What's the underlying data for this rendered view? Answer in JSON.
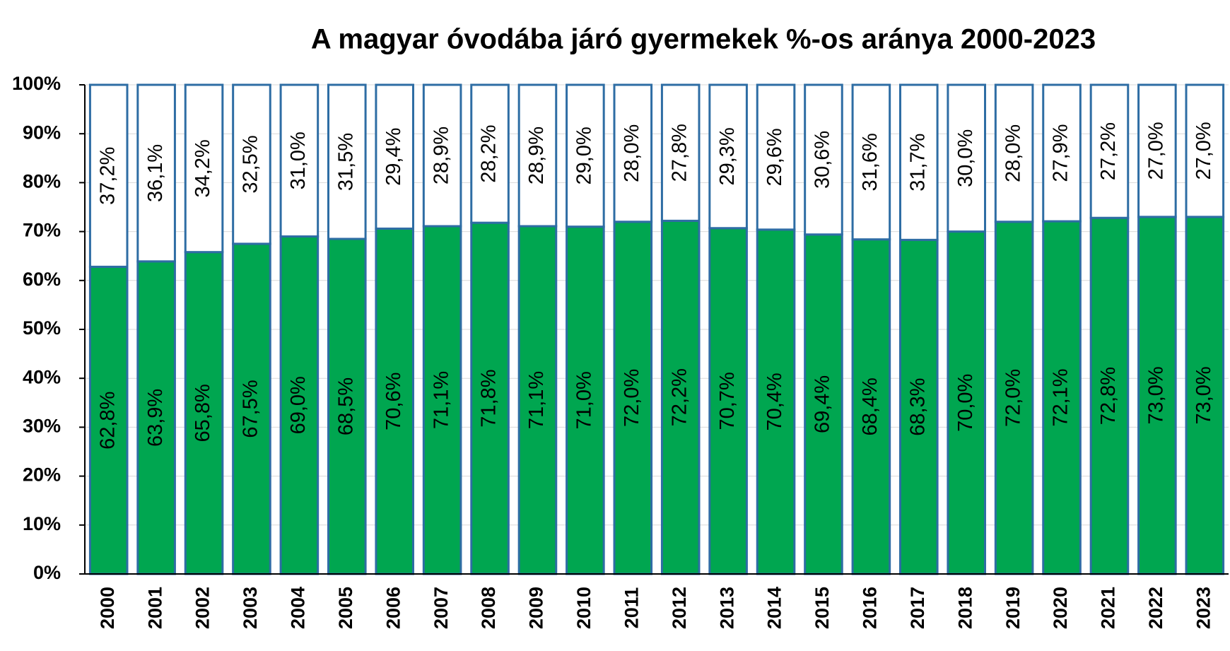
{
  "chart_data": {
    "type": "stacked_bar",
    "title": "A magyar óvodába járó gyermekek %-os  aránya  2000-2023",
    "categories": [
      "2000",
      "2001",
      "2002",
      "2003",
      "2004",
      "2005",
      "2006",
      "2007",
      "2008",
      "2009",
      "2010",
      "2011",
      "2012",
      "2013",
      "2014",
      "2015",
      "2016",
      "2017",
      "2018",
      "2019",
      "2020",
      "2021",
      "2022",
      "2023"
    ],
    "series": [
      {
        "color": "#00a650",
        "values": [
          62.8,
          63.9,
          65.8,
          67.5,
          69.0,
          68.5,
          70.6,
          71.1,
          71.8,
          71.1,
          71.0,
          72.0,
          72.2,
          70.7,
          70.4,
          69.4,
          68.4,
          68.3,
          70.0,
          72.0,
          72.1,
          72.8,
          73.0,
          73.0
        ],
        "value_labels": [
          "62,8%",
          "63,9%",
          "65,8%",
          "67,5%",
          "69,0%",
          "68,5%",
          "70,6%",
          "71,1%",
          "71,8%",
          "71,1%",
          "71,0%",
          "72,0%",
          "72,2%",
          "70,7%",
          "70,4%",
          "69,4%",
          "68,4%",
          "68,3%",
          "70,0%",
          "72,0%",
          "72,1%",
          "72,8%",
          "73,0%",
          "73,0%"
        ]
      },
      {
        "color": "#ffffff",
        "values": [
          37.2,
          36.1,
          34.2,
          32.5,
          31.0,
          31.5,
          29.4,
          28.9,
          28.2,
          28.9,
          29.0,
          28.0,
          27.8,
          29.3,
          29.6,
          30.6,
          31.6,
          31.7,
          30.0,
          28.0,
          27.9,
          27.2,
          27.0,
          27.0
        ],
        "value_labels": [
          "37,2%",
          "36,1%",
          "34,2%",
          "32,5%",
          "31,0%",
          "31,5%",
          "29,4%",
          "28,9%",
          "28,2%",
          "28,9%",
          "29,0%",
          "28,0%",
          "27,8%",
          "29,3%",
          "29,6%",
          "30,6%",
          "31,6%",
          "31,7%",
          "30,0%",
          "28,0%",
          "27,9%",
          "27,2%",
          "27,0%",
          "27,0%"
        ]
      }
    ],
    "bar_stroke": "#2e6da4",
    "ylim": [
      0,
      100
    ],
    "yticks": [
      {
        "value": 0,
        "label": "0%"
      },
      {
        "value": 10,
        "label": "10%"
      },
      {
        "value": 20,
        "label": "20%"
      },
      {
        "value": 30,
        "label": "30%"
      },
      {
        "value": 40,
        "label": "40%"
      },
      {
        "value": 50,
        "label": "50%"
      },
      {
        "value": 60,
        "label": "60%"
      },
      {
        "value": 70,
        "label": "70%"
      },
      {
        "value": 80,
        "label": "80%"
      },
      {
        "value": 90,
        "label": "90%"
      },
      {
        "value": 100,
        "label": "100%"
      }
    ],
    "grid": true
  }
}
